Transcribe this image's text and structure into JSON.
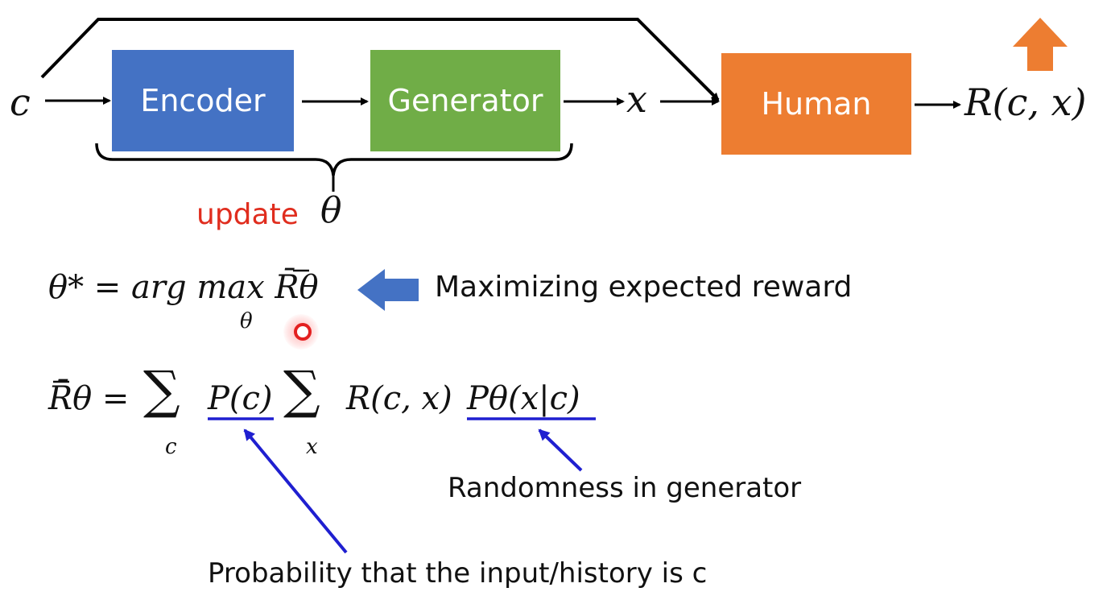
{
  "diagram": {
    "boxes": {
      "encoder": "Encoder",
      "generator": "Generator",
      "human": "Human"
    },
    "input_var": "c",
    "output_var": "x",
    "reward_output": "R(c, x)",
    "update_label": "update",
    "theta_label": "θ"
  },
  "equations": {
    "objective": "θ* = arg max R̄θ",
    "objective_sub": "θ",
    "objective_note": "Maximizing expected reward",
    "expected_reward_lhs": "R̄θ =",
    "sum_sub_c": "c",
    "prob_c": "P(c)",
    "sum_sub_x": "x",
    "reward_term": "R(c, x)",
    "gen_prob": "Pθ(x|c)"
  },
  "annotations": {
    "generator_randomness": "Randomness in generator",
    "input_probability": "Probability that the input/history is c"
  },
  "colors": {
    "encoder": "#4472c4",
    "generator": "#70ad47",
    "human": "#ed7d31",
    "up_arrow": "#ed7d31",
    "blue_arrow": "#4472c4",
    "underline": "#1f1fd0",
    "update_text": "#e02d1e"
  }
}
